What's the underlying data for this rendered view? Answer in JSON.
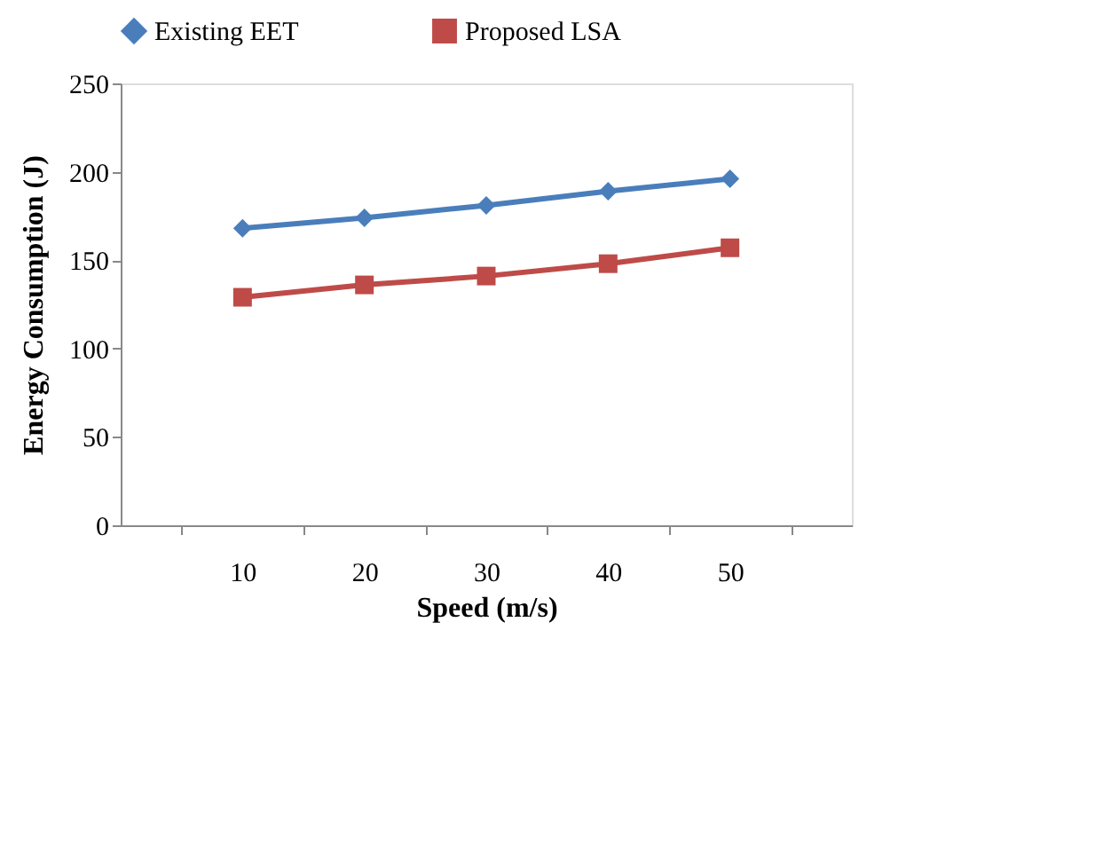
{
  "chart_data": {
    "type": "line",
    "xlabel": "Speed (m/s)",
    "ylabel": "Energy Consumption (J)",
    "categories": [
      "10",
      "20",
      "30",
      "40",
      "50"
    ],
    "series": [
      {
        "name": "Existing EET",
        "color": "#4a7ebb",
        "marker": "diamond",
        "values": [
          168,
          174,
          181,
          189,
          196
        ]
      },
      {
        "name": "Proposed LSA",
        "color": "#be4b48",
        "marker": "square",
        "values": [
          129,
          136,
          141,
          148,
          157
        ]
      }
    ],
    "ylim": [
      0,
      250
    ],
    "yticks": [
      0,
      50,
      100,
      150,
      200,
      250
    ],
    "grid": false,
    "legend": "top",
    "line_style": "solid"
  }
}
